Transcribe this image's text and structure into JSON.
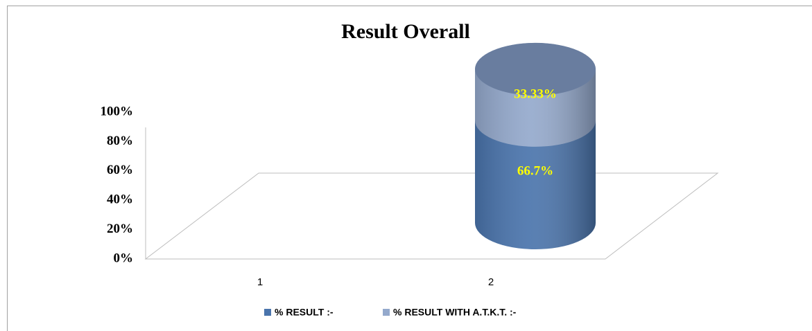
{
  "chart_data": {
    "type": "cylinder-stacked",
    "title": "Result Overall",
    "categories": [
      "1",
      "2"
    ],
    "series": [
      {
        "name": "% RESULT :-",
        "color": "#4a74ac",
        "values": [
          null,
          66.7
        ],
        "value_labels": [
          null,
          "66.7%"
        ]
      },
      {
        "name": "% RESULT WITH A.T.K.T. :-",
        "color": "#94a9cc",
        "values": [
          null,
          33.33
        ],
        "value_labels": [
          null,
          "33.33%"
        ]
      }
    ],
    "ylim": [
      0,
      100
    ],
    "yticks": [
      {
        "value": 0,
        "label": "0%"
      },
      {
        "value": 20,
        "label": "20%"
      },
      {
        "value": 40,
        "label": "40%"
      },
      {
        "value": 60,
        "label": "60%"
      },
      {
        "value": 80,
        "label": "80%"
      },
      {
        "value": 100,
        "label": "100%"
      }
    ],
    "legend": "bottom"
  }
}
